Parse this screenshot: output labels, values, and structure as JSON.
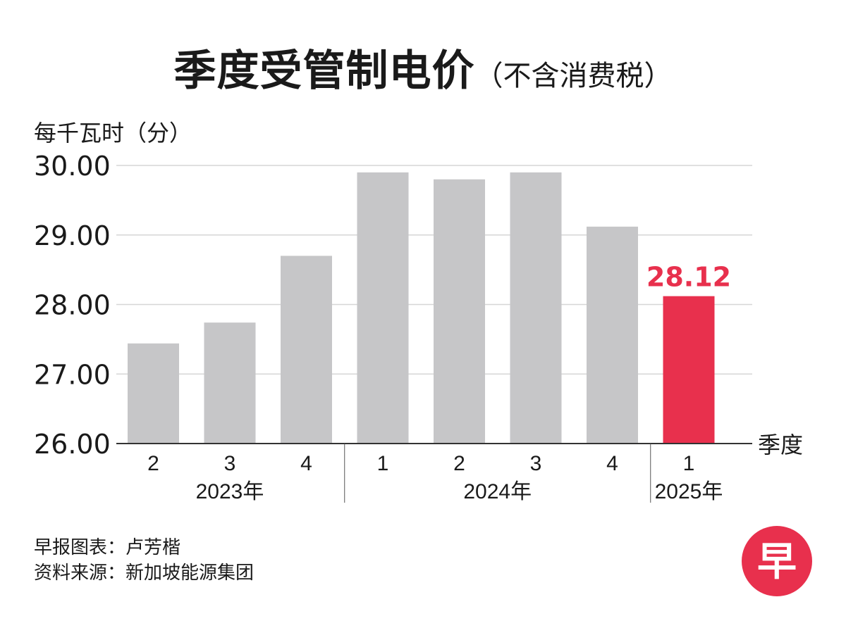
{
  "title": {
    "main": "季度受管制电价",
    "sub": "（不含消费税）"
  },
  "chart_data": {
    "type": "bar",
    "title": "季度受管制电价（不含消费税）",
    "ylabel": "每千瓦时（分）",
    "xlabel": "季度",
    "ylim": [
      26,
      30
    ],
    "yticks": [
      "30.00",
      "29.00",
      "28.00",
      "27.00",
      "26.00"
    ],
    "ytick_values": [
      30,
      29,
      28,
      27,
      26
    ],
    "categories": [
      "2",
      "3",
      "4",
      "1",
      "2",
      "3",
      "4",
      "1"
    ],
    "values": [
      27.44,
      27.74,
      28.7,
      29.9,
      29.8,
      29.9,
      29.12,
      28.12
    ],
    "highlight_index": 7,
    "highlight_label": "28.12",
    "year_groups": [
      {
        "label": "2023年",
        "count": 3
      },
      {
        "label": "2024年",
        "count": 4
      },
      {
        "label": "2025年",
        "count": 1
      }
    ]
  },
  "colors": {
    "bar": "#c6c6c8",
    "highlight": "#e8304d",
    "grid": "#d6d6d6",
    "axis": "#333333",
    "text": "#1a1a1a"
  },
  "footer": {
    "chart_credit": "早报图表：卢芳楷",
    "source": "资料来源：新加坡能源集团"
  },
  "logo": {
    "glyph": "早"
  }
}
